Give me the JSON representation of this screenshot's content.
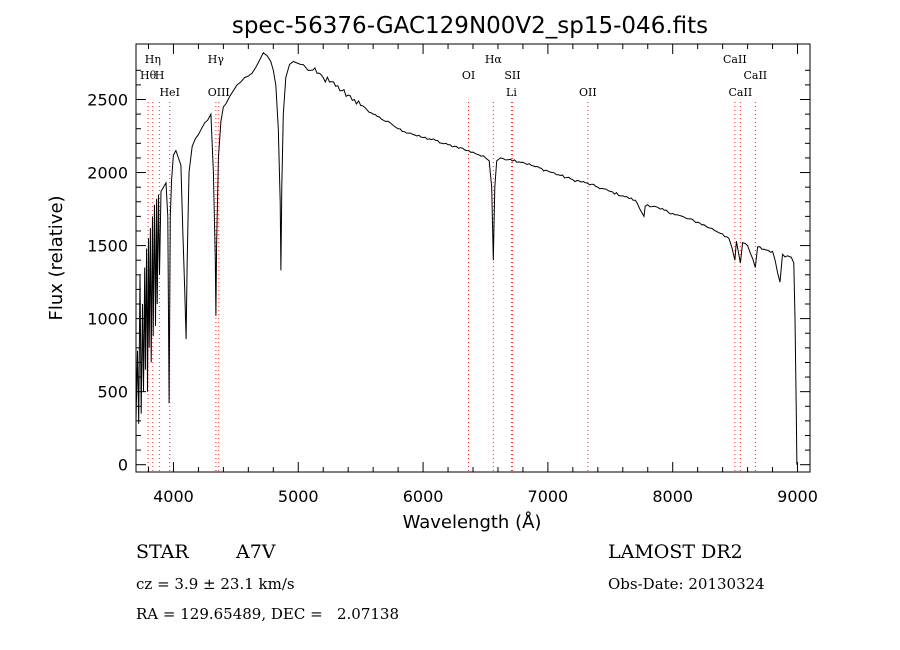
{
  "chart_data": {
    "type": "line",
    "title": "spec-56376-GAC129N00V2_sp15-046.fits",
    "xlabel": "Wavelength (Å)",
    "ylabel": "Flux (relative)",
    "xlim": [
      3700,
      9100
    ],
    "ylim": [
      -50,
      2880
    ],
    "xticks": [
      4000,
      5000,
      6000,
      7000,
      8000,
      9000
    ],
    "yticks": [
      0,
      500,
      1000,
      1500,
      2000,
      2500
    ],
    "grid": false,
    "series": [
      {
        "points": [
          [
            3700,
            300
          ],
          [
            3712,
            780
          ],
          [
            3722,
            280
          ],
          [
            3732,
            1300
          ],
          [
            3742,
            350
          ],
          [
            3752,
            1100
          ],
          [
            3760,
            500
          ],
          [
            3770,
            1350
          ],
          [
            3775,
            650
          ],
          [
            3785,
            1480
          ],
          [
            3792,
            500
          ],
          [
            3800,
            1550
          ],
          [
            3806,
            800
          ],
          [
            3815,
            1620
          ],
          [
            3822,
            700
          ],
          [
            3832,
            1700
          ],
          [
            3838,
            880
          ],
          [
            3848,
            1780
          ],
          [
            3856,
            950
          ],
          [
            3865,
            1820
          ],
          [
            3870,
            1100
          ],
          [
            3880,
            1850
          ],
          [
            3888,
            1300
          ],
          [
            3900,
            1870
          ],
          [
            3920,
            1900
          ],
          [
            3940,
            1930
          ],
          [
            3955,
            1700
          ],
          [
            3965,
            420
          ],
          [
            3975,
            1700
          ],
          [
            3985,
            1950
          ],
          [
            4000,
            2120
          ],
          [
            4020,
            2150
          ],
          [
            4040,
            2100
          ],
          [
            4060,
            2050
          ],
          [
            4075,
            1600
          ],
          [
            4090,
            1200
          ],
          [
            4101,
            860
          ],
          [
            4110,
            1400
          ],
          [
            4125,
            2000
          ],
          [
            4150,
            2180
          ],
          [
            4175,
            2230
          ],
          [
            4200,
            2260
          ],
          [
            4225,
            2300
          ],
          [
            4250,
            2340
          ],
          [
            4275,
            2360
          ],
          [
            4300,
            2400
          ],
          [
            4320,
            2000
          ],
          [
            4335,
            1400
          ],
          [
            4340,
            1020
          ],
          [
            4346,
            1500
          ],
          [
            4360,
            2100
          ],
          [
            4380,
            2350
          ],
          [
            4400,
            2450
          ],
          [
            4420,
            2470
          ],
          [
            4450,
            2520
          ],
          [
            4480,
            2560
          ],
          [
            4510,
            2600
          ],
          [
            4540,
            2620
          ],
          [
            4570,
            2650
          ],
          [
            4600,
            2660
          ],
          [
            4630,
            2680
          ],
          [
            4660,
            2720
          ],
          [
            4690,
            2770
          ],
          [
            4720,
            2820
          ],
          [
            4750,
            2800
          ],
          [
            4780,
            2760
          ],
          [
            4800,
            2700
          ],
          [
            4820,
            2600
          ],
          [
            4840,
            2300
          ],
          [
            4855,
            1800
          ],
          [
            4861,
            1330
          ],
          [
            4868,
            1900
          ],
          [
            4880,
            2400
          ],
          [
            4900,
            2650
          ],
          [
            4930,
            2740
          ],
          [
            4960,
            2760
          ],
          [
            4990,
            2750
          ],
          [
            5020,
            2740
          ],
          [
            5060,
            2720
          ],
          [
            5100,
            2700
          ],
          [
            5150,
            2680
          ],
          [
            5200,
            2650
          ],
          [
            5250,
            2620
          ],
          [
            5300,
            2590
          ],
          [
            5350,
            2560
          ],
          [
            5400,
            2530
          ],
          [
            5450,
            2500
          ],
          [
            5500,
            2460
          ],
          [
            5550,
            2430
          ],
          [
            5600,
            2400
          ],
          [
            5650,
            2380
          ],
          [
            5700,
            2350
          ],
          [
            5750,
            2330
          ],
          [
            5800,
            2300
          ],
          [
            5850,
            2280
          ],
          [
            5900,
            2270
          ],
          [
            5950,
            2250
          ],
          [
            6000,
            2240
          ],
          [
            6050,
            2230
          ],
          [
            6100,
            2220
          ],
          [
            6150,
            2200
          ],
          [
            6200,
            2190
          ],
          [
            6250,
            2180
          ],
          [
            6300,
            2170
          ],
          [
            6350,
            2150
          ],
          [
            6400,
            2140
          ],
          [
            6450,
            2120
          ],
          [
            6500,
            2100
          ],
          [
            6530,
            2080
          ],
          [
            6550,
            1900
          ],
          [
            6563,
            1400
          ],
          [
            6575,
            1900
          ],
          [
            6590,
            2080
          ],
          [
            6620,
            2100
          ],
          [
            6700,
            2090
          ],
          [
            6800,
            2070
          ],
          [
            6900,
            2040
          ],
          [
            7000,
            2010
          ],
          [
            7100,
            1980
          ],
          [
            7200,
            1950
          ],
          [
            7300,
            1930
          ],
          [
            7400,
            1900
          ],
          [
            7500,
            1870
          ],
          [
            7600,
            1840
          ],
          [
            7700,
            1810
          ],
          [
            7770,
            1700
          ],
          [
            7780,
            1770
          ],
          [
            7800,
            1780
          ],
          [
            7900,
            1750
          ],
          [
            8000,
            1720
          ],
          [
            8100,
            1690
          ],
          [
            8200,
            1660
          ],
          [
            8300,
            1620
          ],
          [
            8400,
            1580
          ],
          [
            8450,
            1550
          ],
          [
            8498,
            1400
          ],
          [
            8510,
            1530
          ],
          [
            8542,
            1380
          ],
          [
            8560,
            1520
          ],
          [
            8600,
            1500
          ],
          [
            8662,
            1350
          ],
          [
            8680,
            1490
          ],
          [
            8750,
            1470
          ],
          [
            8800,
            1460
          ],
          [
            8860,
            1250
          ],
          [
            8880,
            1440
          ],
          [
            8920,
            1430
          ],
          [
            8950,
            1420
          ],
          [
            8970,
            1380
          ],
          [
            8980,
            1000
          ],
          [
            8990,
            350
          ],
          [
            8995,
            0
          ]
        ]
      }
    ],
    "lines": [
      {
        "label": "Hη",
        "x": 3835,
        "row": 1
      },
      {
        "label": "Hθ",
        "x": 3797,
        "row": 2
      },
      {
        "label": "H",
        "x": 3889,
        "row": 2
      },
      {
        "label": "HeI",
        "x": 3970,
        "row": 3
      },
      {
        "label": "Hγ",
        "x": 4340,
        "row": 1
      },
      {
        "label": "OIII",
        "x": 4363,
        "row": 3
      },
      {
        "label": "Hα",
        "x": 6563,
        "row": 1
      },
      {
        "label": "OI",
        "x": 6364,
        "row": 2
      },
      {
        "label": "SII",
        "x": 6716,
        "row": 2
      },
      {
        "label": "Li",
        "x": 6708,
        "row": 3
      },
      {
        "label": "OII",
        "x": 7320,
        "row": 3
      },
      {
        "label": "CaII",
        "x": 8498,
        "row": 1
      },
      {
        "label": "CaII",
        "x": 8662,
        "row": 2
      },
      {
        "label": "CaII",
        "x": 8542,
        "row": 3
      }
    ]
  },
  "footer": {
    "object_type": "STAR",
    "subclass": "A7V",
    "redshift": "cz = 3.9 ± 23.1 km/s",
    "coords": "RA = 129.65489, DEC =   2.07138",
    "survey": "LAMOST DR2",
    "obs_date": "Obs-Date: 20130324"
  }
}
